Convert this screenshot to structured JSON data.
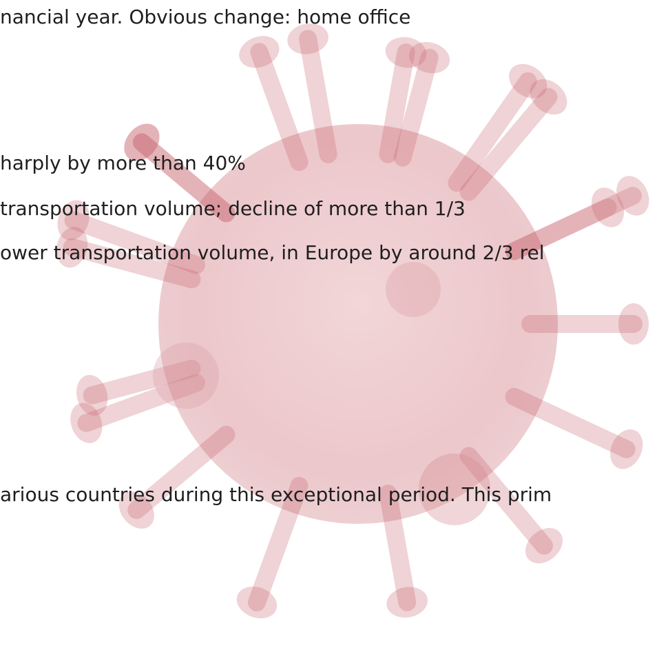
{
  "lines": [
    "nancial year. Obvious change: home office",
    "harply by more than 40%",
    "transportation volume; decline of more than 1/3",
    "ower transportation volume, in Europe by around 2/3 rel",
    "arious countries during this exceptional period. This prim"
  ]
}
